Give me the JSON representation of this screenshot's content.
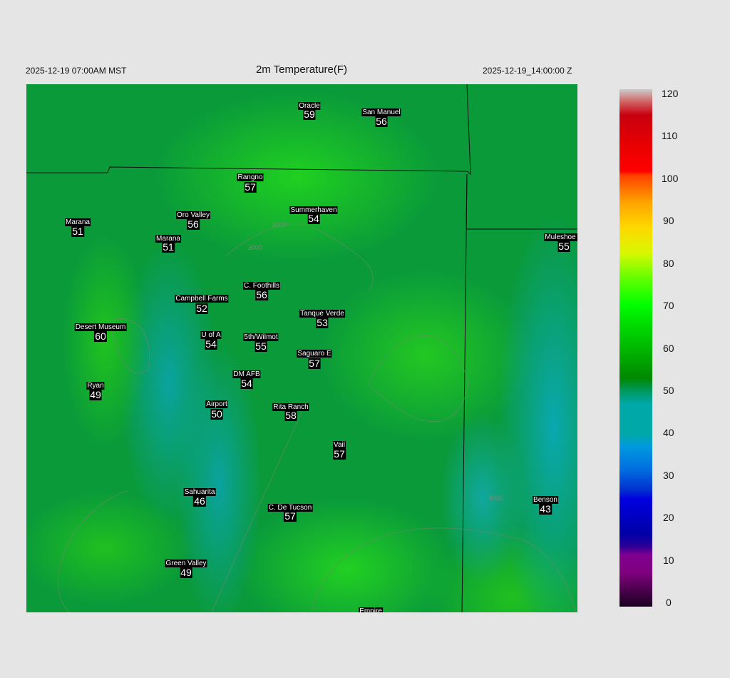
{
  "header": {
    "local_time": "2025-12-19 07:00AM MST",
    "title": "2m Temperature(F)",
    "utc_time": "2025-12-19_14:00:00 Z"
  },
  "stations": [
    {
      "name": "Oracle",
      "value": "59"
    },
    {
      "name": "San Manuel",
      "value": "56"
    },
    {
      "name": "Rangno",
      "value": "57"
    },
    {
      "name": "Summerhaven",
      "value": "54"
    },
    {
      "name": "Oro Valley",
      "value": "56"
    },
    {
      "name": "Marana",
      "value": "51"
    },
    {
      "name": "Marana",
      "value": "51"
    },
    {
      "name": "Muleshoe R",
      "value": "55"
    },
    {
      "name": "C. Foothills",
      "value": "56"
    },
    {
      "name": "Campbell Farms",
      "value": "52"
    },
    {
      "name": "Tanque Verde",
      "value": "53"
    },
    {
      "name": "Desert Museum",
      "value": "60"
    },
    {
      "name": "U of A",
      "value": "54"
    },
    {
      "name": "5th/Wilmot",
      "value": "55"
    },
    {
      "name": "Saguaro E",
      "value": "57"
    },
    {
      "name": "DM AFB",
      "value": "54"
    },
    {
      "name": "Ryan",
      "value": "49"
    },
    {
      "name": "Airport",
      "value": "50"
    },
    {
      "name": "Rita Ranch",
      "value": "58"
    },
    {
      "name": "Vail",
      "value": "57"
    },
    {
      "name": "Sahuarita",
      "value": "46"
    },
    {
      "name": "C. De Tucson",
      "value": "57"
    },
    {
      "name": "Benson",
      "value": "43"
    },
    {
      "name": "Green Valley",
      "value": "49"
    },
    {
      "name": "Empire",
      "value": ""
    }
  ],
  "contour_labels": [
    "3000",
    "4000",
    "5000",
    "6000"
  ],
  "colorbar": {
    "range": [
      0,
      120
    ],
    "ticks": [
      "0",
      "10",
      "20",
      "30",
      "40",
      "50",
      "60",
      "70",
      "80",
      "90",
      "100",
      "110",
      "120"
    ],
    "stops": [
      {
        "v": 0,
        "c": "#1a0020"
      },
      {
        "v": 5,
        "c": "#5a005a"
      },
      {
        "v": 8,
        "c": "#800080"
      },
      {
        "v": 12,
        "c": "#800090"
      },
      {
        "v": 14,
        "c": "#2a0098"
      },
      {
        "v": 17,
        "c": "#0000a8"
      },
      {
        "v": 25,
        "c": "#0000e0"
      },
      {
        "v": 27,
        "c": "#0030d0"
      },
      {
        "v": 32,
        "c": "#0070e0"
      },
      {
        "v": 37,
        "c": "#0098e0"
      },
      {
        "v": 40,
        "c": "#00a8a8"
      },
      {
        "v": 47,
        "c": "#00a8a8"
      },
      {
        "v": 50,
        "c": "#009860"
      },
      {
        "v": 53,
        "c": "#008800"
      },
      {
        "v": 60,
        "c": "#00b800"
      },
      {
        "v": 66,
        "c": "#00e000"
      },
      {
        "v": 70,
        "c": "#00ff00"
      },
      {
        "v": 76,
        "c": "#60ff00"
      },
      {
        "v": 82,
        "c": "#d8f800"
      },
      {
        "v": 88,
        "c": "#ffd800"
      },
      {
        "v": 94,
        "c": "#ffa000"
      },
      {
        "v": 100,
        "c": "#ff4000"
      },
      {
        "v": 101,
        "c": "#ff0000"
      },
      {
        "v": 107,
        "c": "#e80000"
      },
      {
        "v": 114,
        "c": "#c80010"
      },
      {
        "v": 117,
        "c": "#d06060"
      },
      {
        "v": 120,
        "c": "#cccccc"
      }
    ]
  }
}
